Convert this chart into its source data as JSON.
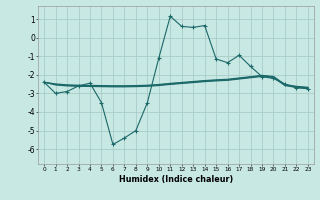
{
  "xlabel": "Humidex (Indice chaleur)",
  "background_color": "#c8e8e4",
  "grid_color": "#a8ccc8",
  "line_color": "#1a6868",
  "xlim": [
    -0.5,
    23.5
  ],
  "ylim": [
    -6.8,
    1.7
  ],
  "yticks": [
    1,
    0,
    -1,
    -2,
    -3,
    -4,
    -5,
    -6
  ],
  "xticks": [
    0,
    1,
    2,
    3,
    4,
    5,
    6,
    7,
    8,
    9,
    10,
    11,
    12,
    13,
    14,
    15,
    16,
    17,
    18,
    19,
    20,
    21,
    22,
    23
  ],
  "main_x": [
    0,
    1,
    2,
    3,
    4,
    5,
    6,
    7,
    8,
    9,
    10,
    11,
    12,
    13,
    14,
    15,
    16,
    17,
    18,
    19,
    20,
    21,
    22,
    23
  ],
  "main_y": [
    -2.4,
    -3.0,
    -2.9,
    -2.6,
    -2.45,
    -3.5,
    -5.75,
    -5.4,
    -5.0,
    -3.5,
    -1.1,
    1.15,
    0.6,
    0.55,
    0.65,
    -1.15,
    -1.35,
    -0.95,
    -1.55,
    -2.1,
    -2.2,
    -2.5,
    -2.7,
    -2.75
  ],
  "flat1_x": [
    0,
    1,
    2,
    3,
    4,
    5,
    6,
    7,
    8,
    9,
    10,
    11,
    12,
    13,
    14,
    15,
    16,
    17,
    18,
    19,
    20,
    21,
    22,
    23
  ],
  "flat1_y": [
    -2.4,
    -2.55,
    -2.6,
    -2.62,
    -2.63,
    -2.64,
    -2.65,
    -2.65,
    -2.64,
    -2.62,
    -2.58,
    -2.52,
    -2.47,
    -2.42,
    -2.37,
    -2.33,
    -2.3,
    -2.23,
    -2.16,
    -2.09,
    -2.15,
    -2.58,
    -2.68,
    -2.73
  ],
  "flat2_x": [
    0,
    1,
    2,
    3,
    4,
    5,
    6,
    7,
    8,
    9,
    10,
    11,
    12,
    13,
    14,
    15,
    16,
    17,
    18,
    19,
    20,
    21,
    22,
    23
  ],
  "flat2_y": [
    -2.4,
    -2.52,
    -2.57,
    -2.59,
    -2.6,
    -2.61,
    -2.62,
    -2.62,
    -2.61,
    -2.59,
    -2.55,
    -2.49,
    -2.44,
    -2.39,
    -2.34,
    -2.3,
    -2.27,
    -2.2,
    -2.13,
    -2.06,
    -2.12,
    -2.55,
    -2.65,
    -2.7
  ],
  "flat3_x": [
    0,
    1,
    2,
    3,
    4,
    5,
    6,
    7,
    8,
    9,
    10,
    11,
    12,
    13,
    14,
    15,
    16,
    17,
    18,
    19,
    20,
    21,
    22,
    23
  ],
  "flat3_y": [
    -2.4,
    -2.49,
    -2.54,
    -2.56,
    -2.57,
    -2.58,
    -2.59,
    -2.59,
    -2.58,
    -2.56,
    -2.52,
    -2.46,
    -2.41,
    -2.36,
    -2.31,
    -2.27,
    -2.24,
    -2.17,
    -2.1,
    -2.03,
    -2.09,
    -2.52,
    -2.62,
    -2.67
  ]
}
